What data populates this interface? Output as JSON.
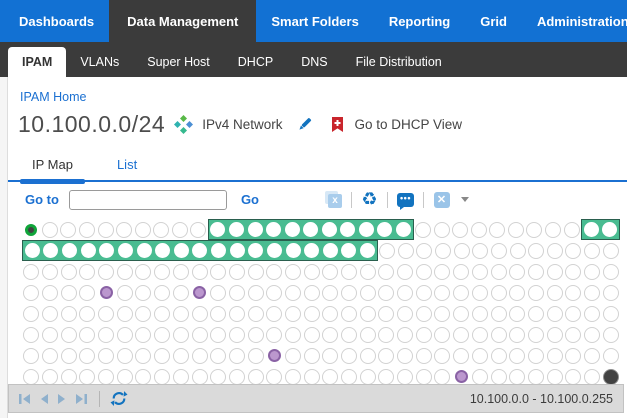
{
  "nav": {
    "items": [
      {
        "label": "Dashboards",
        "active": false
      },
      {
        "label": "Data Management",
        "active": true
      },
      {
        "label": "Smart Folders",
        "active": false
      },
      {
        "label": "Reporting",
        "active": false
      },
      {
        "label": "Grid",
        "active": false
      },
      {
        "label": "Administration",
        "active": false
      }
    ]
  },
  "subnav": {
    "tabs": [
      {
        "label": "IPAM",
        "active": true
      },
      {
        "label": "VLANs",
        "active": false
      },
      {
        "label": "Super Host",
        "active": false
      },
      {
        "label": "DHCP",
        "active": false
      },
      {
        "label": "DNS",
        "active": false
      },
      {
        "label": "File Distribution",
        "active": false
      }
    ]
  },
  "page": {
    "breadcrumb": "IPAM Home",
    "network": "10.100.0.0/24",
    "type_label": "IPv4 Network",
    "dhcp_link": "Go to DHCP View"
  },
  "view_tabs": [
    {
      "label": "IP Map",
      "active": true
    },
    {
      "label": "List",
      "active": false
    }
  ],
  "toolbar": {
    "goto_label": "Go to",
    "goto_value": "",
    "go_label": "Go",
    "icons": [
      "export-icon",
      "recycle-icon",
      "comment-icon",
      "clear-x-icon",
      "dropdown-caret"
    ]
  },
  "ipmap": {
    "columns": 32,
    "rows": [
      "S---------UUUUUUUUUUU---------UU",
      "UUUUUUUUUUUUUUUUUUU-------------",
      "--------------------------------",
      "----F----F----------------------",
      "--------------------------------",
      "--------------------------------",
      "-------------F------------------",
      "-----------------------F-------B"
    ],
    "legend": {
      "S": "selected-network-address",
      "U": "dhcp-range-used",
      "F": "fixed-address",
      "B": "special-dark-address",
      "-": "unused"
    }
  },
  "footer": {
    "range": "10.100.0.0 - 10.100.0.255",
    "pager": [
      "first",
      "previous",
      "next",
      "last"
    ],
    "refresh": "refresh"
  },
  "colors": {
    "nav_blue": "#1271d3",
    "dark_tab": "#3b3b3b",
    "link_blue": "#1b70d1",
    "range_green": "#49bc91",
    "range_border": "#2a5f4e",
    "fixed_purple": "#bb97ce",
    "fixed_border": "#8a62a5",
    "selected_ring": "#10a53a",
    "dark_circle": "#424242"
  }
}
